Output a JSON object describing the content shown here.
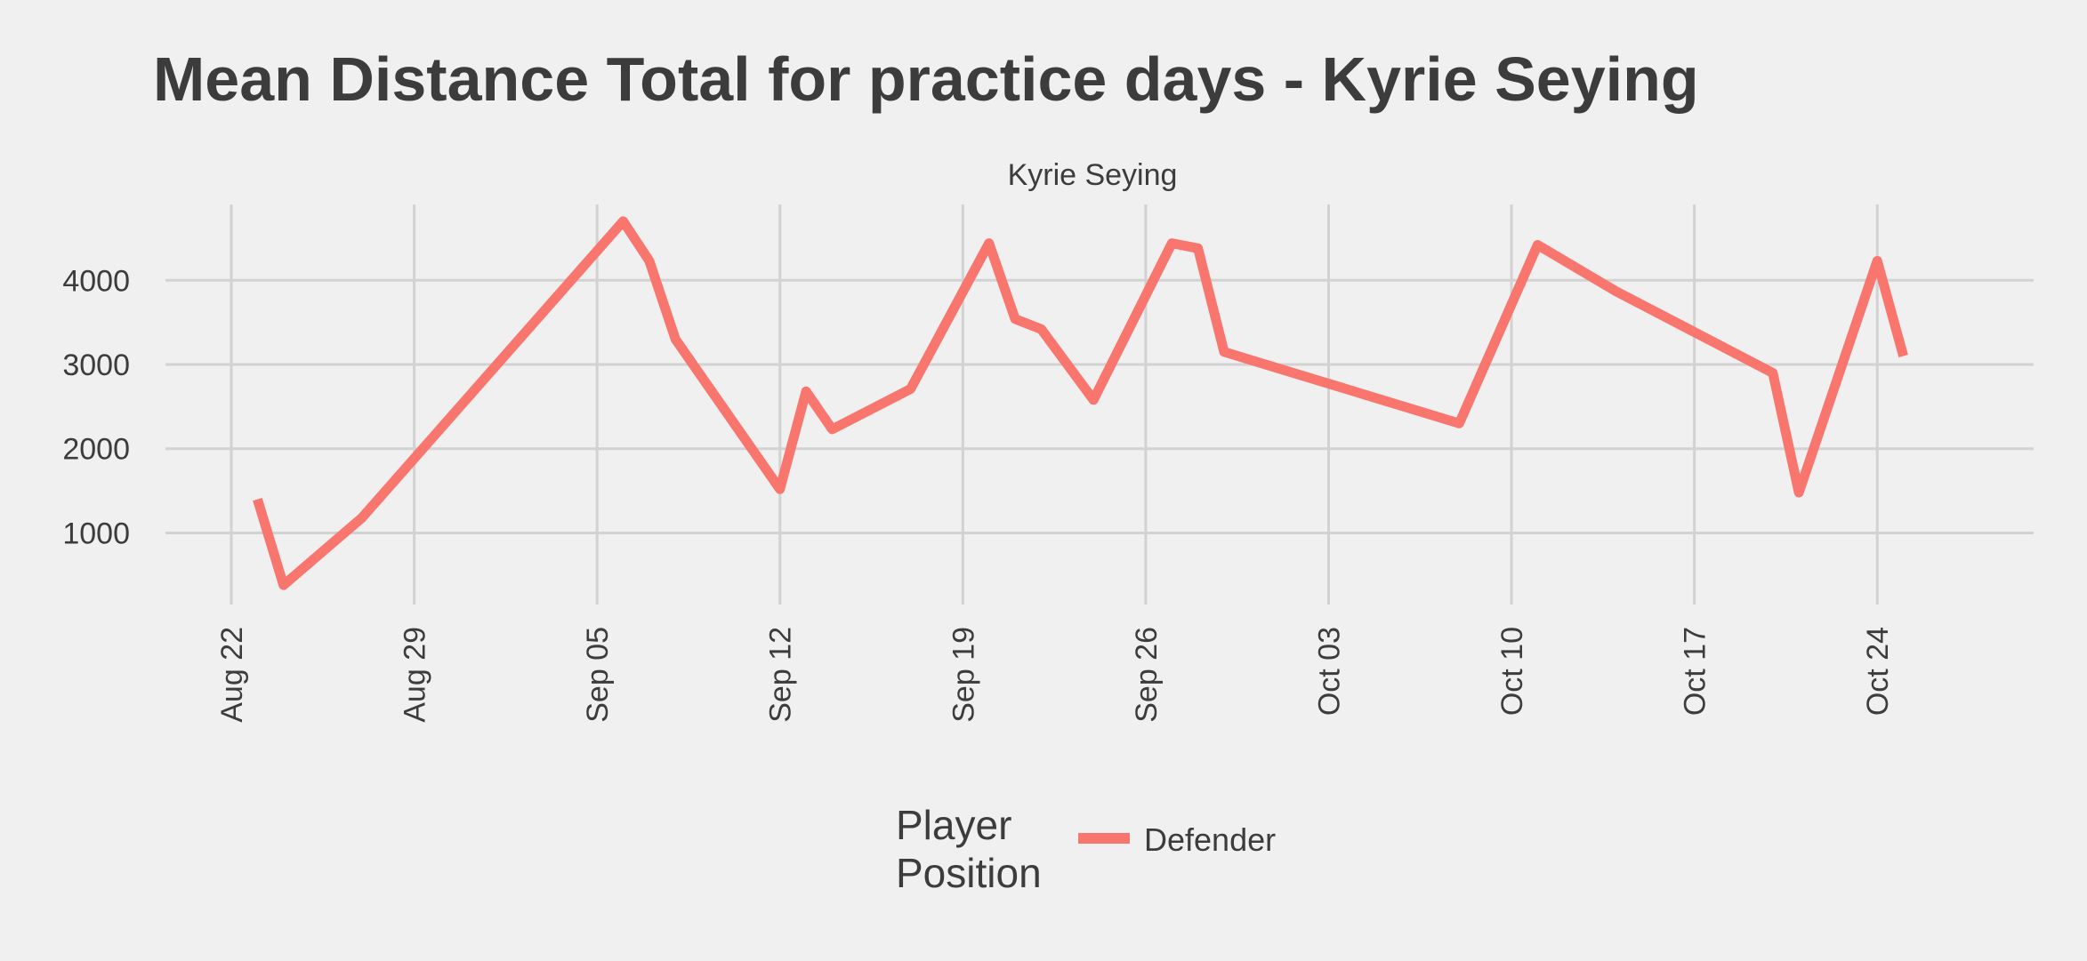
{
  "chart_data": {
    "type": "line",
    "title": "Mean Distance Total for practice days -  Kyrie Seying",
    "facet_label": "Kyrie Seying",
    "xlabel": "",
    "ylabel": "",
    "x_ticks": [
      "Aug 22",
      "Aug 29",
      "Sep 05",
      "Sep 12",
      "Sep 19",
      "Sep 26",
      "Oct 03",
      "Oct 10",
      "Oct 17",
      "Oct 24"
    ],
    "y_ticks": [
      1000,
      2000,
      3000,
      4000
    ],
    "y_tick_labels": [
      "1000",
      "2000",
      "3000",
      "4000"
    ],
    "ylim": [
      150,
      4900
    ],
    "grid": true,
    "legend": {
      "title_lines": [
        "Player",
        "Position"
      ],
      "placement": "bottom"
    },
    "series": [
      {
        "name": "Defender",
        "color": "#f8766d",
        "points": [
          [
            "Aug 23",
            1400
          ],
          [
            "Aug 24",
            380
          ],
          [
            "Aug 27",
            1180
          ],
          [
            "Sep 06",
            4700
          ],
          [
            "Sep 07",
            4230
          ],
          [
            "Sep 08",
            3300
          ],
          [
            "Sep 12",
            1520
          ],
          [
            "Sep 13",
            2680
          ],
          [
            "Sep 14",
            2230
          ],
          [
            "Sep 17",
            2710
          ],
          [
            "Sep 20",
            4440
          ],
          [
            "Sep 21",
            3540
          ],
          [
            "Sep 22",
            3420
          ],
          [
            "Sep 24",
            2580
          ],
          [
            "Sep 27",
            4440
          ],
          [
            "Sep 28",
            4380
          ],
          [
            "Sep 29",
            3150
          ],
          [
            "Oct 08",
            2300
          ],
          [
            "Oct 11",
            4420
          ],
          [
            "Oct 14",
            3870
          ],
          [
            "Oct 20",
            2900
          ],
          [
            "Oct 21",
            1480
          ],
          [
            "Oct 24",
            4230
          ],
          [
            "Oct 25",
            3100
          ]
        ]
      }
    ]
  }
}
